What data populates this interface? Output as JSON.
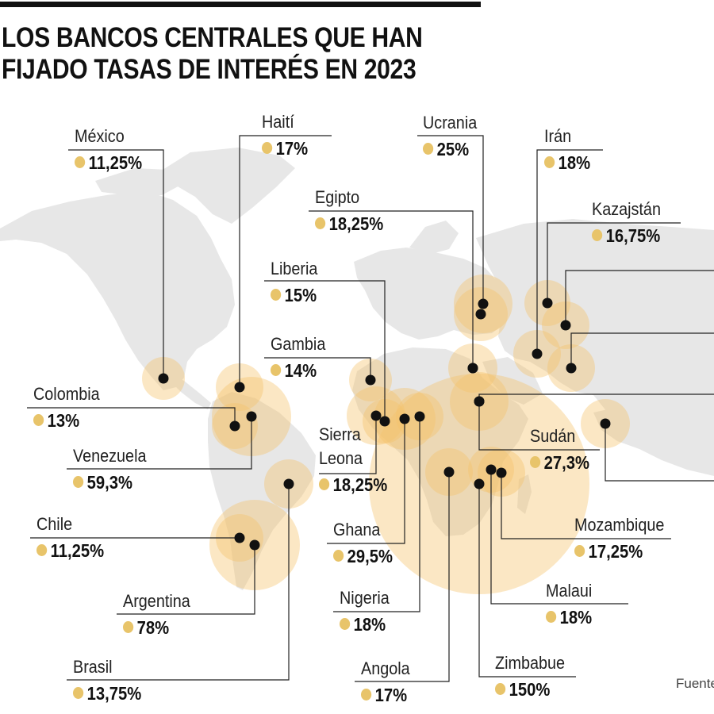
{
  "title": {
    "line1": "LOS BANCOS CENTRALES QUE HAN",
    "line2": "FIJADO TASAS DE INTERÉS EN 2023"
  },
  "source_label": "Fuente",
  "colors": {
    "bubble": "#f4c46c",
    "bubble_opacity": 0.4,
    "dot": "#e8c46a",
    "land": "#e7e7e7",
    "marker": "#111111",
    "leader": "#222222"
  },
  "countries": [
    {
      "id": "mexico",
      "name": "México",
      "rate": "11,25%",
      "value": 11.25
    },
    {
      "id": "haiti",
      "name": "Haití",
      "rate": "17%",
      "value": 17
    },
    {
      "id": "ucrania",
      "name": "Ucrania",
      "rate": "25%",
      "value": 25
    },
    {
      "id": "iran",
      "name": "Irán",
      "rate": "18%",
      "value": 18
    },
    {
      "id": "egipto",
      "name": "Egipto",
      "rate": "18,25%",
      "value": 18.25
    },
    {
      "id": "kazajstan",
      "name": "Kazajstán",
      "rate": "16,75%",
      "value": 16.75
    },
    {
      "id": "liberia",
      "name": "Liberia",
      "rate": "15%",
      "value": 15
    },
    {
      "id": "gambia",
      "name": "Gambia",
      "rate": "14%",
      "value": 14
    },
    {
      "id": "colombia",
      "name": "Colombia",
      "rate": "13%",
      "value": 13
    },
    {
      "id": "venezuela",
      "name": "Venezuela",
      "rate": "59,3%",
      "value": 59.3
    },
    {
      "id": "sierra-leona",
      "name": "Sierra Leona",
      "name_lines": [
        "Sierra",
        "Leona"
      ],
      "rate": "18,25%",
      "value": 18.25
    },
    {
      "id": "sudan",
      "name": "Sudán",
      "rate": "27,3%",
      "value": 27.3
    },
    {
      "id": "chile",
      "name": "Chile",
      "rate": "11,25%",
      "value": 11.25
    },
    {
      "id": "ghana",
      "name": "Ghana",
      "rate": "29,5%",
      "value": 29.5
    },
    {
      "id": "mozambique",
      "name": "Mozambique",
      "rate": "17,25%",
      "value": 17.25
    },
    {
      "id": "argentina",
      "name": "Argentina",
      "rate": "78%",
      "value": 78
    },
    {
      "id": "nigeria",
      "name": "Nigeria",
      "rate": "18%",
      "value": 18
    },
    {
      "id": "malaui",
      "name": "Malaui",
      "rate": "18%",
      "value": 18
    },
    {
      "id": "brasil",
      "name": "Brasil",
      "rate": "13,75%",
      "value": 13.75
    },
    {
      "id": "angola",
      "name": "Angola",
      "rate": "17%",
      "value": 17
    },
    {
      "id": "zimbabue",
      "name": "Zimbabue",
      "rate": "150%",
      "value": 150
    }
  ]
}
